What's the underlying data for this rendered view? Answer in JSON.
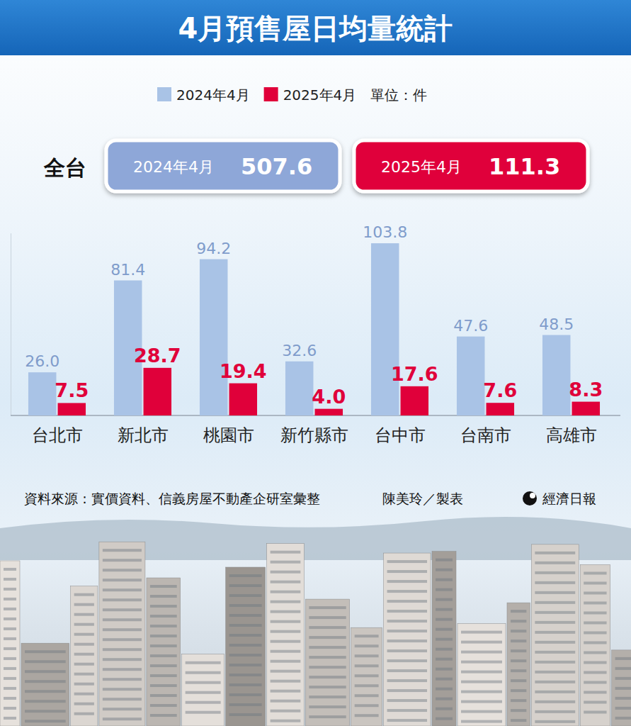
{
  "chart_data": {
    "type": "bar",
    "title": "4月預售屋日均量統計",
    "unit": "單位：件",
    "categories": [
      "台北市",
      "新北市",
      "桃園市",
      "新竹縣市",
      "台中市",
      "台南市",
      "高雄市"
    ],
    "series": [
      {
        "name": "2024年4月",
        "color": "#a9c3e6",
        "values": [
          26.0,
          81.4,
          94.2,
          32.6,
          103.8,
          47.6,
          48.5
        ],
        "value_labels": [
          "26.0",
          "81.4",
          "94.2",
          "32.6",
          "103.8",
          "47.6",
          "48.5"
        ]
      },
      {
        "name": "2025年4月",
        "color": "#e0003a",
        "values": [
          7.5,
          28.7,
          19.4,
          4.0,
          17.6,
          7.6,
          8.3
        ],
        "value_labels": [
          "7.5",
          "28.7",
          "19.4",
          "4.0",
          "17.6",
          "7.6",
          "8.3"
        ]
      }
    ],
    "totals": {
      "label": "全台",
      "items": [
        {
          "name": "2024年4月",
          "value": 507.6,
          "color": "#8ea7d8"
        },
        {
          "name": "2025年4月",
          "value": 111.3,
          "color": "#e0003a"
        }
      ]
    },
    "ylim": [
      0,
      110
    ],
    "yticks": [
      0
    ],
    "grid": true,
    "data_labels": true,
    "tick_labels": "x",
    "legend": "top",
    "source": "資料來源：實價資料、信義房屋不動產企研室彙整",
    "credit": "陳美玲／製表",
    "publisher": "經濟日報"
  }
}
